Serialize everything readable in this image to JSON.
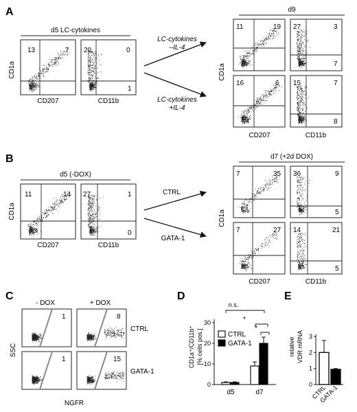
{
  "panels": {
    "A": {
      "letter": "A",
      "left_header": "d5 LC-cytokines",
      "right_header": "d9",
      "arrow_top": [
        "LC-cytokines",
        "–IL-4"
      ],
      "arrow_bottom": [
        "LC-cytokines",
        "+IL-4"
      ],
      "y_label": "CD1a",
      "x_label_1": "CD207",
      "x_label_2": "CD11b",
      "left_numbers": [
        [
          "13",
          "7",
          "",
          ""
        ],
        [
          "20",
          "0",
          "",
          "1"
        ]
      ],
      "right_numbers": [
        [
          "11",
          "19",
          "",
          ""
        ],
        [
          "27",
          "3",
          "",
          "7"
        ],
        [
          "16",
          "6",
          "",
          ""
        ],
        [
          "15",
          "7",
          "",
          "8"
        ]
      ]
    },
    "B": {
      "letter": "B",
      "left_header": "d5 (-DOX)",
      "right_header": "d7 (+2d DOX)",
      "arrow_top": "CTRL",
      "arrow_bottom": "GATA-1",
      "y_label": "CD1a",
      "x_label_1": "CD207",
      "x_label_2": "CD11b",
      "left_numbers": [
        [
          "11",
          "14",
          "",
          ""
        ],
        [
          "27",
          "1",
          "",
          "0"
        ]
      ],
      "right_numbers": [
        [
          "7",
          "35",
          "",
          ""
        ],
        [
          "36",
          "9",
          "",
          "5"
        ],
        [
          "7",
          "27",
          "",
          ""
        ],
        [
          "14",
          "21",
          "",
          "5"
        ]
      ]
    },
    "C": {
      "letter": "C",
      "col_minus": "- DOX",
      "col_plus": "+ DOX",
      "row_ctrl": "CTRL",
      "row_gata": "GATA-1",
      "y_label": "SSC",
      "x_label": "NGFR",
      "numbers": [
        "1",
        "8",
        "1",
        "15"
      ]
    },
    "D": {
      "letter": "D",
      "ns": "n.s.",
      "star": "*",
      "star2": "*"
    },
    "E": {
      "letter": "E"
    }
  },
  "chart_data": [
    {
      "type": "bar",
      "panel": "D",
      "ylabel": "CD1a⁺/CD11b⁺ [% cells pos.]",
      "categories": [
        "d5",
        "d7"
      ],
      "ylim": [
        0,
        30
      ],
      "yticks": [
        "0",
        "10",
        "20",
        "30"
      ],
      "series": [
        {
          "name": "CTRL",
          "values": [
            1,
            9
          ],
          "errors": [
            0.3,
            2
          ],
          "color": "#ffffff"
        },
        {
          "name": "GATA-1",
          "values": [
            1,
            20
          ],
          "errors": [
            0.3,
            3
          ],
          "color": "#000000"
        }
      ]
    },
    {
      "type": "bar",
      "panel": "E",
      "ylabel": "relative VDR mRNA",
      "categories": [
        "CTRL",
        "GATA-1"
      ],
      "ylim": [
        0,
        3
      ],
      "yticks": [
        "0",
        "1",
        "2",
        "3"
      ],
      "values": [
        2.0,
        0.95
      ],
      "errors": [
        0.75,
        0.05
      ],
      "colors": [
        "#ffffff",
        "#000000"
      ]
    }
  ]
}
